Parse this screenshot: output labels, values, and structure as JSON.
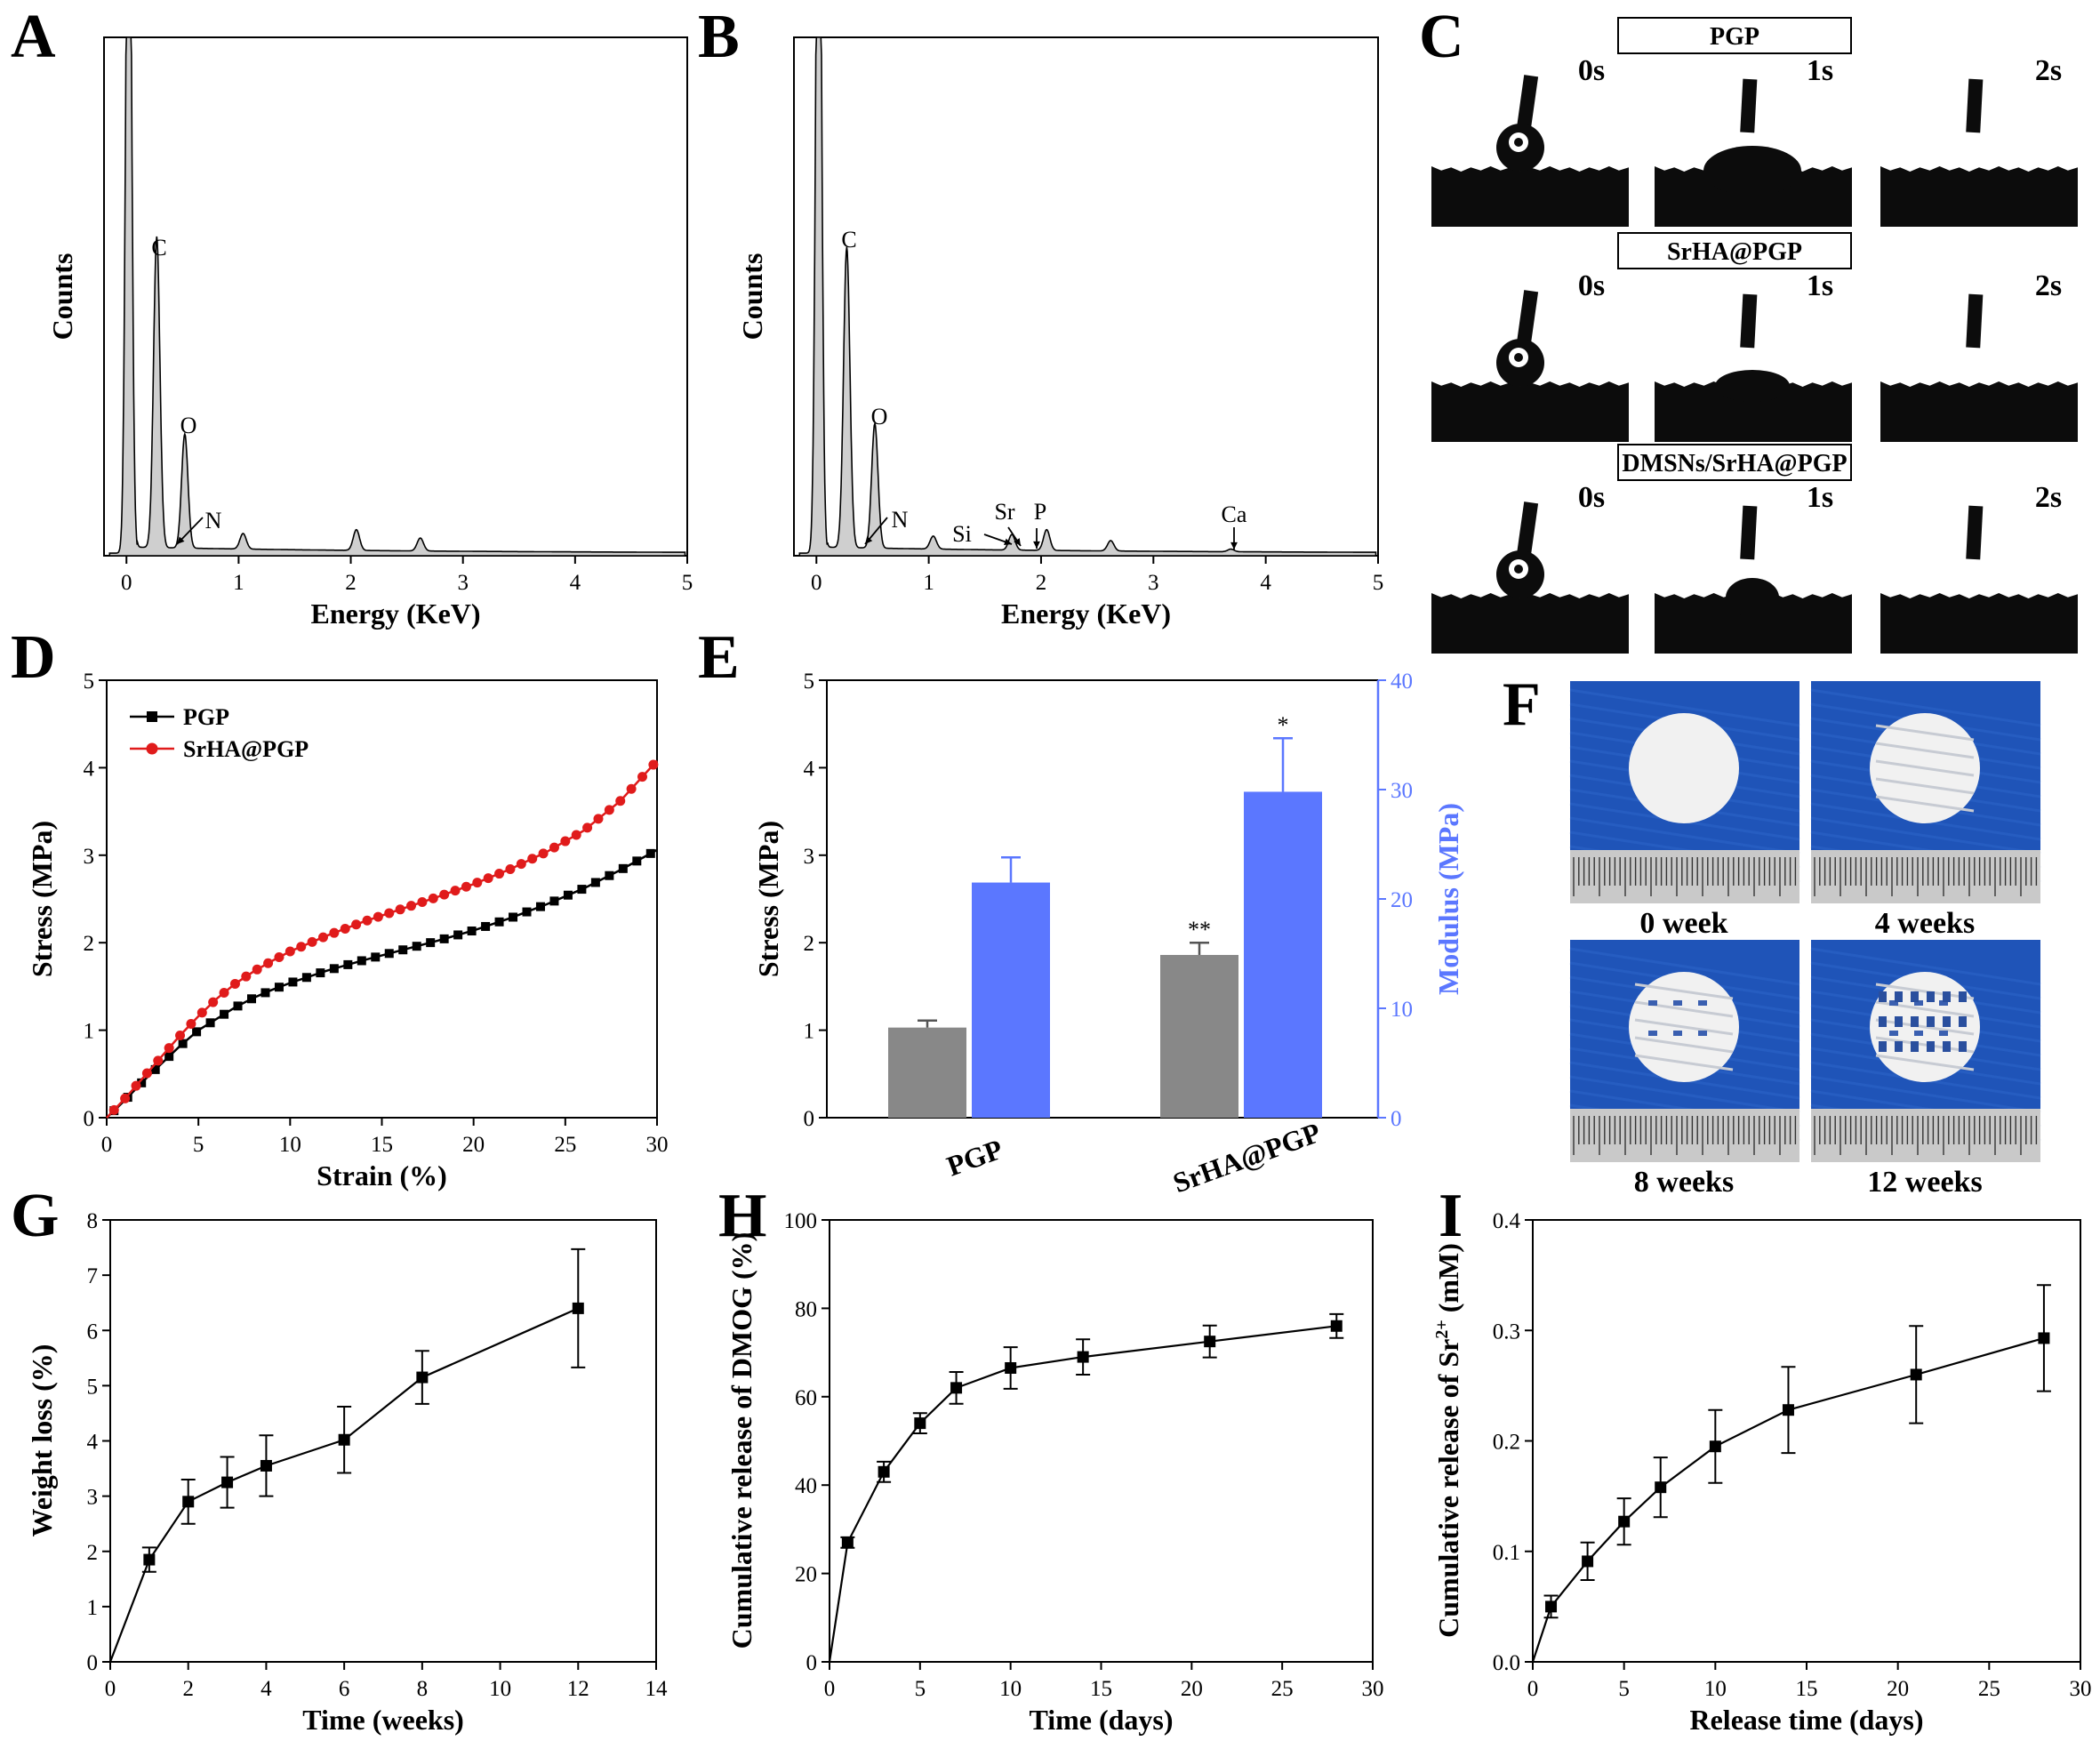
{
  "panels": {
    "A": "A",
    "B": "B",
    "C": "C",
    "D": "D",
    "E": "E",
    "F": "F",
    "G": "G",
    "H": "H",
    "I": "I"
  },
  "chart_data": [
    {
      "id": "A",
      "type": "area",
      "xlabel": "Energy (KeV)",
      "ylabel": "Counts",
      "xlim": [
        -0.2,
        5
      ],
      "xticks": [
        0,
        1,
        2,
        3,
        4,
        5
      ],
      "peaks_keV": [
        {
          "x": 0.02,
          "y": 1.6
        },
        {
          "x": 0.27,
          "y": 0.6
        },
        {
          "x": 0.52,
          "y": 0.22
        },
        {
          "x": 1.04,
          "y": 0.03
        },
        {
          "x": 2.05,
          "y": 0.04
        },
        {
          "x": 2.62,
          "y": 0.025
        }
      ],
      "annotations": [
        {
          "text": "C",
          "x": 0.27
        },
        {
          "text": "O",
          "x": 0.52
        },
        {
          "text": "N",
          "x": 0.4
        }
      ]
    },
    {
      "id": "B",
      "type": "area",
      "xlabel": "Energy (KeV)",
      "ylabel": "Counts",
      "xlim": [
        -0.2,
        5
      ],
      "xticks": [
        0,
        1,
        2,
        3,
        4,
        5
      ],
      "peaks_keV": [
        {
          "x": 0.02,
          "y": 1.6
        },
        {
          "x": 0.27,
          "y": 0.58
        },
        {
          "x": 0.52,
          "y": 0.24
        },
        {
          "x": 1.04,
          "y": 0.025
        },
        {
          "x": 1.74,
          "y": 0.03
        },
        {
          "x": 2.05,
          "y": 0.04
        },
        {
          "x": 2.62,
          "y": 0.02
        },
        {
          "x": 3.69,
          "y": 0.005
        }
      ],
      "annotations": [
        {
          "text": "C",
          "x": 0.27
        },
        {
          "text": "O",
          "x": 0.52
        },
        {
          "text": "N",
          "x": 0.4
        },
        {
          "text": "Si",
          "x": 1.74
        },
        {
          "text": "Sr",
          "x": 1.81
        },
        {
          "text": "P",
          "x": 1.95
        },
        {
          "text": "Ca",
          "x": 3.69
        }
      ]
    },
    {
      "id": "D",
      "type": "line",
      "xlabel": "Strain (%)",
      "ylabel": "Stress (MPa)",
      "xlim": [
        0,
        30
      ],
      "ylim": [
        0,
        5
      ],
      "xticks": [
        0,
        5,
        10,
        15,
        20,
        25,
        30
      ],
      "yticks": [
        0,
        1,
        2,
        3,
        4,
        5
      ],
      "legend": "top-left",
      "x": [
        0,
        1,
        2,
        3,
        4,
        5,
        6,
        7,
        8,
        9,
        10,
        12,
        14,
        16,
        18,
        20,
        22,
        24,
        26,
        28,
        30
      ],
      "series": [
        {
          "name": "PGP",
          "color": "#000000",
          "marker": "square",
          "values": [
            0,
            0.2,
            0.42,
            0.62,
            0.82,
            1.0,
            1.13,
            1.26,
            1.37,
            1.46,
            1.54,
            1.68,
            1.8,
            1.91,
            2.02,
            2.14,
            2.28,
            2.44,
            2.62,
            2.83,
            3.06
          ]
        },
        {
          "name": "SrHA@PGP",
          "color": "#e01b1b",
          "marker": "circle",
          "values": [
            0,
            0.22,
            0.46,
            0.7,
            0.94,
            1.16,
            1.36,
            1.53,
            1.67,
            1.79,
            1.9,
            2.08,
            2.24,
            2.38,
            2.52,
            2.67,
            2.84,
            3.04,
            3.28,
            3.62,
            4.08
          ]
        }
      ]
    },
    {
      "id": "E",
      "type": "bar",
      "categories": [
        "PGP",
        "SrHA@PGP"
      ],
      "ylabel": "Stress (MPa)",
      "y2label": "Modulus (MPa)",
      "ylim": [
        0,
        5
      ],
      "y2lim": [
        0,
        40
      ],
      "yticks": [
        0,
        1,
        2,
        3,
        4,
        5
      ],
      "y2ticks": [
        0,
        10,
        20,
        30,
        40
      ],
      "series": [
        {
          "name": "Stress",
          "axis": "left",
          "color": "#888888",
          "values": [
            1.03,
            1.86
          ],
          "errors": [
            0.08,
            0.14
          ],
          "significance": [
            "",
            "**"
          ]
        },
        {
          "name": "Modulus",
          "axis": "right",
          "color": "#5b77ff",
          "values": [
            21.5,
            29.8
          ],
          "errors": [
            2.3,
            4.9
          ],
          "significance": [
            "",
            "*"
          ]
        }
      ]
    },
    {
      "id": "G",
      "type": "line",
      "xlabel": "Time (weeks)",
      "ylabel": "Weight loss (%)",
      "xlim": [
        0,
        14
      ],
      "ylim": [
        0,
        8
      ],
      "xticks": [
        0,
        2,
        4,
        6,
        8,
        10,
        12,
        14
      ],
      "yticks": [
        0,
        1,
        2,
        3,
        4,
        5,
        6,
        7,
        8
      ],
      "x": [
        0,
        1,
        2,
        3,
        4,
        6,
        8,
        12
      ],
      "y": [
        0,
        1.85,
        2.9,
        3.25,
        3.55,
        4.02,
        5.15,
        6.4
      ],
      "errors": [
        0,
        0.22,
        0.4,
        0.46,
        0.55,
        0.6,
        0.48,
        1.07
      ]
    },
    {
      "id": "H",
      "type": "line",
      "xlabel": "Time (days)",
      "ylabel": "Cumulative release of DMOG (%)",
      "xlim": [
        0,
        30
      ],
      "ylim": [
        0,
        100
      ],
      "xticks": [
        0,
        5,
        10,
        15,
        20,
        25,
        30
      ],
      "yticks": [
        0,
        20,
        40,
        60,
        80,
        100
      ],
      "x": [
        0,
        1,
        3,
        5,
        7,
        10,
        14,
        21,
        28
      ],
      "y": [
        0,
        27,
        43,
        54,
        62,
        66.5,
        69,
        72.5,
        76
      ],
      "errors": [
        0,
        1.2,
        2.3,
        2.3,
        3.6,
        4.7,
        4.0,
        3.6,
        2.7
      ]
    },
    {
      "id": "I",
      "type": "line",
      "xlabel": "Release time (days)",
      "ylabel": "Cumulative release of Sr",
      "ylabel_sup": "2+",
      "ylabel_unit": " (mM)",
      "xlim": [
        0,
        30
      ],
      "ylim": [
        0,
        0.4
      ],
      "xticks": [
        0,
        5,
        10,
        15,
        20,
        25,
        30
      ],
      "yticks": [
        0.0,
        0.1,
        0.2,
        0.3,
        0.4
      ],
      "x": [
        0,
        1,
        3,
        5,
        7,
        10,
        14,
        21,
        28
      ],
      "y": [
        0,
        0.05,
        0.091,
        0.127,
        0.158,
        0.195,
        0.228,
        0.26,
        0.293
      ],
      "errors": [
        0,
        0.01,
        0.017,
        0.021,
        0.027,
        0.033,
        0.039,
        0.044,
        0.048
      ]
    }
  ],
  "contact_angle": {
    "rows": [
      "PGP",
      "SrHA@PGP",
      "DMSNs/SrHA@PGP"
    ],
    "times": [
      "0s",
      "1s",
      "2s"
    ]
  },
  "degradation_photos": {
    "captions": [
      "0 week",
      "4 weeks",
      "8 weeks",
      "12 weeks"
    ]
  }
}
